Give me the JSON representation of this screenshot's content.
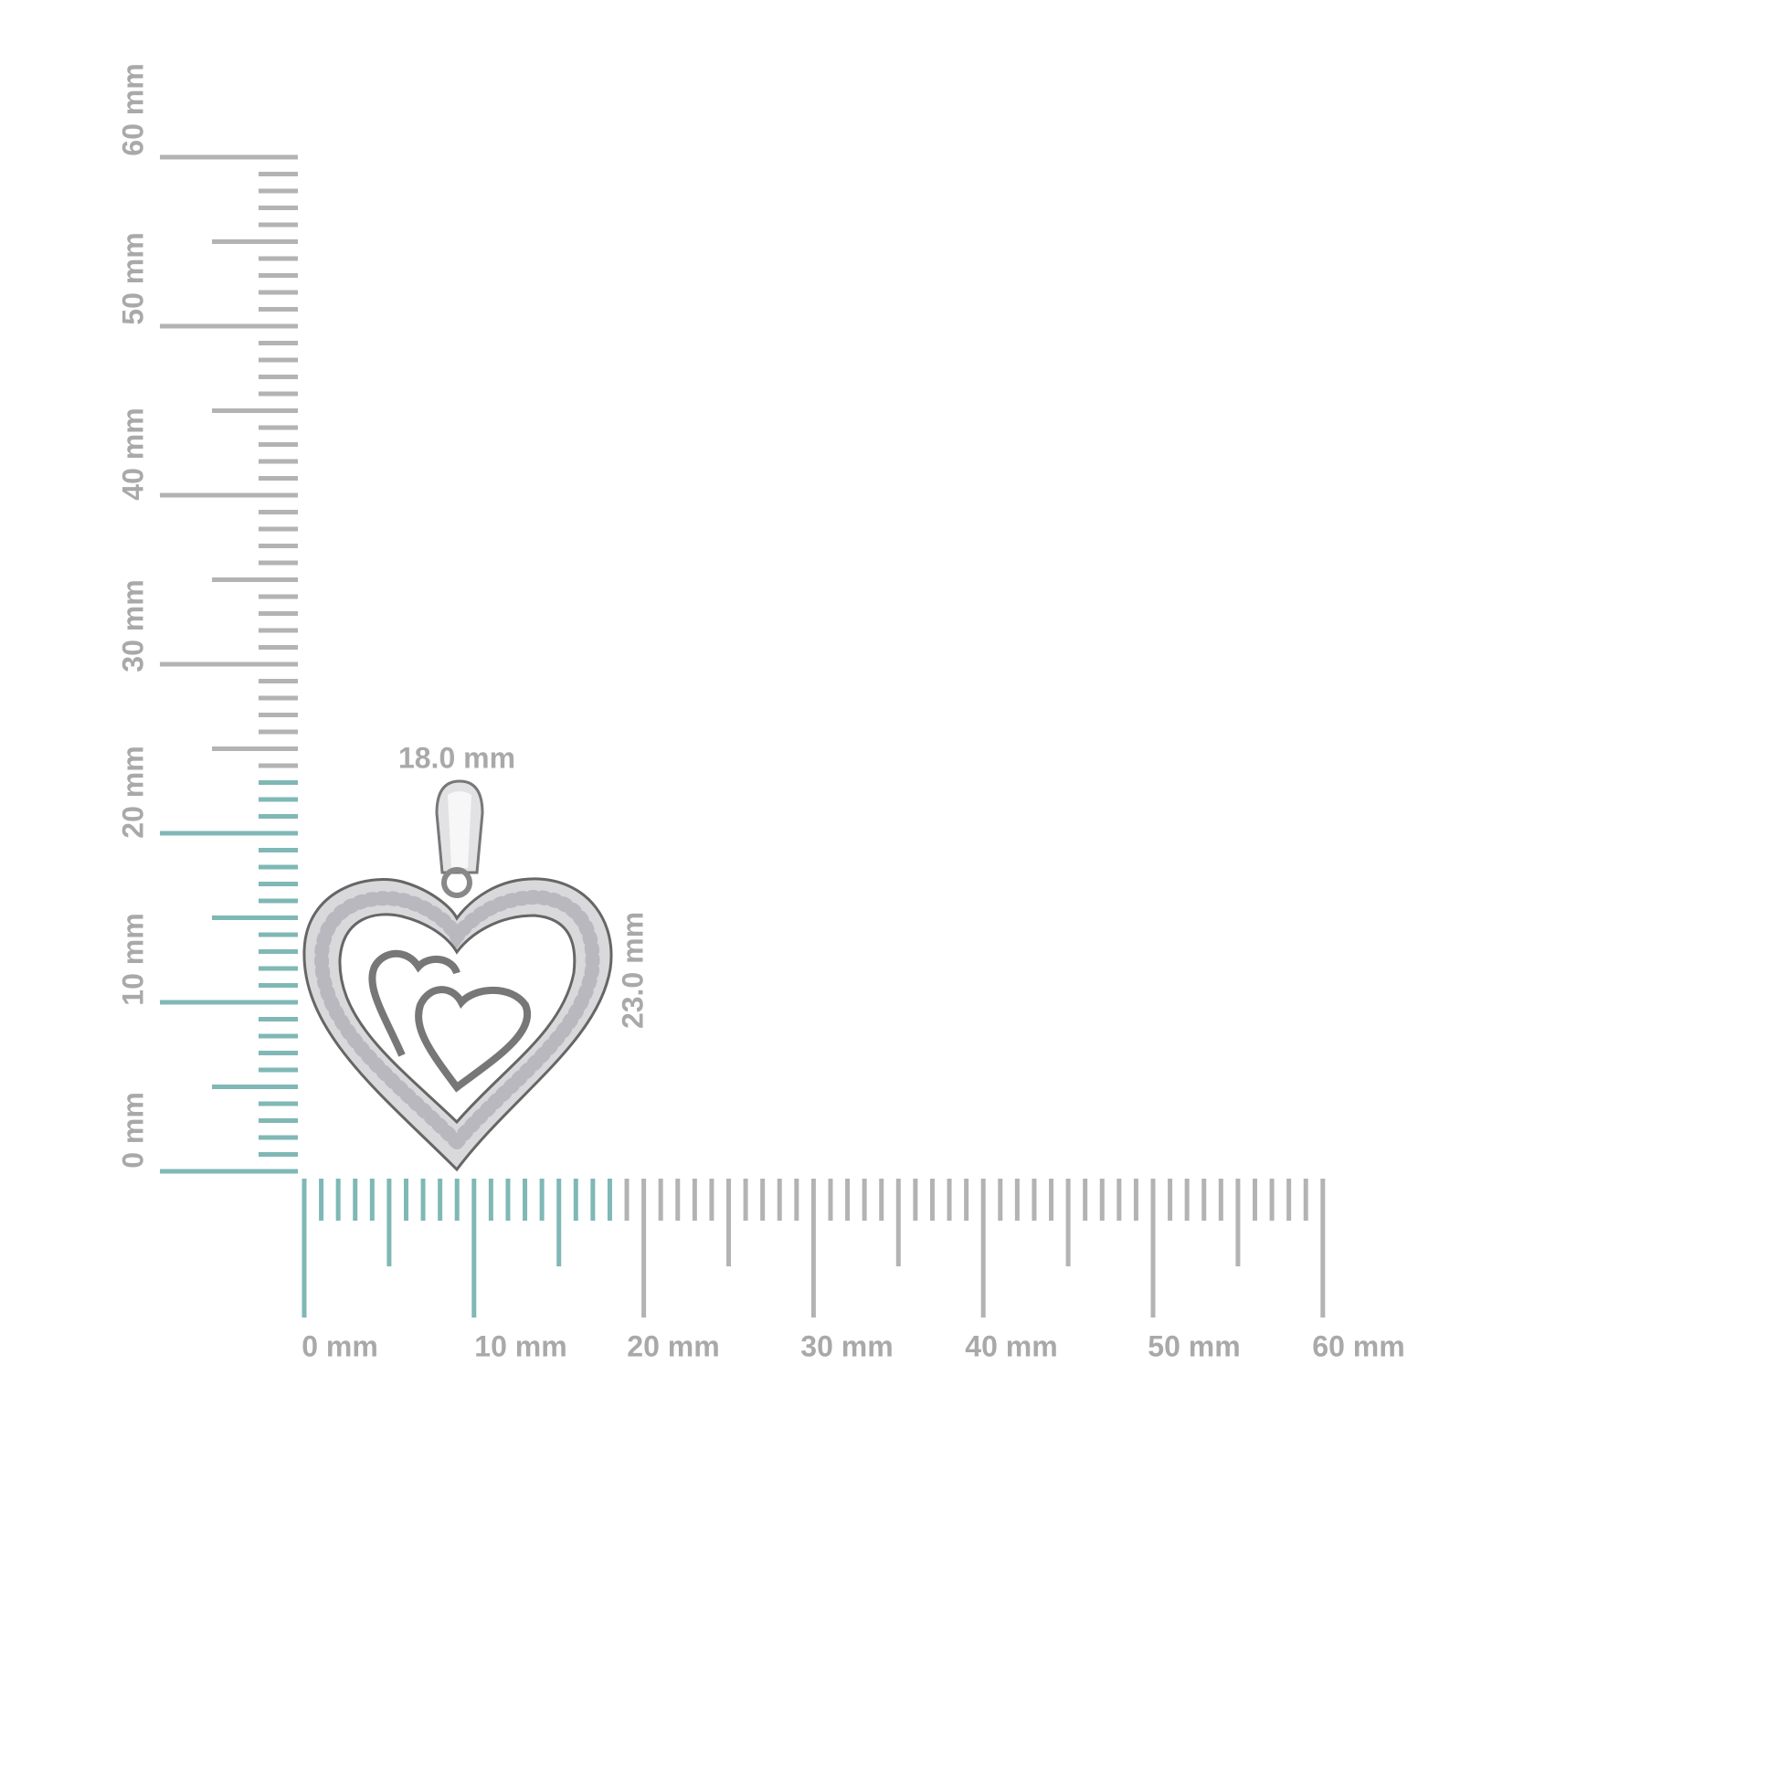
{
  "rulers": {
    "horizontal": {
      "labels": [
        "0 mm",
        "10 mm",
        "20 mm",
        "30 mm",
        "40 mm",
        "50 mm",
        "60 mm"
      ]
    },
    "vertical": {
      "labels": [
        "0 mm",
        "10 mm",
        "20 mm",
        "30 mm",
        "40 mm",
        "50 mm",
        "60 mm"
      ]
    }
  },
  "dimensions": {
    "width": "18.0 mm",
    "height": "23.0 mm"
  }
}
